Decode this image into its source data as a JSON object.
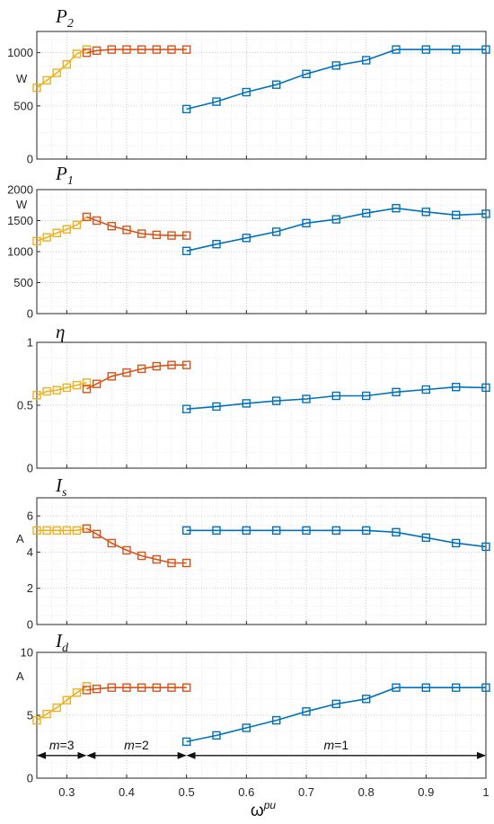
{
  "chart_data": [
    {
      "type": "line",
      "title": "P",
      "title_sub": "2",
      "ylabel": "W",
      "ylim": [
        0,
        1200
      ],
      "yticks": [
        0,
        500,
        1000
      ],
      "xlim": [
        0.25,
        1.0
      ],
      "grid": true,
      "series": [
        {
          "color": "#EDB120",
          "x": [
            0.25,
            0.2667,
            0.2833,
            0.3,
            0.3167,
            0.3333
          ],
          "y": [
            670,
            740,
            810,
            890,
            990,
            1030
          ]
        },
        {
          "color": "#D95319",
          "x": [
            0.3333,
            0.35,
            0.375,
            0.4,
            0.425,
            0.45,
            0.475,
            0.5
          ],
          "y": [
            1000,
            1020,
            1030,
            1030,
            1030,
            1030,
            1030,
            1030
          ]
        },
        {
          "color": "#0072BD",
          "x": [
            0.5,
            0.55,
            0.6,
            0.65,
            0.7,
            0.75,
            0.8,
            0.85,
            0.9,
            0.95,
            1.0
          ],
          "y": [
            470,
            540,
            630,
            700,
            800,
            880,
            930,
            1030,
            1030,
            1030,
            1030
          ]
        }
      ]
    },
    {
      "type": "line",
      "title": "P",
      "title_sub": "1",
      "ylabel": "W",
      "ylim": [
        0,
        2000
      ],
      "yticks": [
        0,
        500,
        1000,
        1500,
        2000
      ],
      "xlim": [
        0.25,
        1.0
      ],
      "grid": true,
      "series": [
        {
          "color": "#EDB120",
          "x": [
            0.25,
            0.2667,
            0.2833,
            0.3,
            0.3167,
            0.3333
          ],
          "y": [
            1170,
            1230,
            1300,
            1360,
            1430,
            1560
          ]
        },
        {
          "color": "#D95319",
          "x": [
            0.3333,
            0.35,
            0.375,
            0.4,
            0.425,
            0.45,
            0.475,
            0.5
          ],
          "y": [
            1560,
            1500,
            1410,
            1350,
            1290,
            1270,
            1260,
            1260
          ]
        },
        {
          "color": "#0072BD",
          "x": [
            0.5,
            0.55,
            0.6,
            0.65,
            0.7,
            0.75,
            0.8,
            0.85,
            0.9,
            0.95,
            1.0
          ],
          "y": [
            1010,
            1120,
            1220,
            1320,
            1460,
            1520,
            1620,
            1700,
            1640,
            1590,
            1610
          ]
        }
      ]
    },
    {
      "type": "line",
      "title": "η",
      "title_sub": "",
      "ylabel": "",
      "ylim": [
        0,
        1
      ],
      "yticks": [
        0,
        0.5,
        1
      ],
      "xlim": [
        0.25,
        1.0
      ],
      "grid": true,
      "series": [
        {
          "color": "#EDB120",
          "x": [
            0.25,
            0.2667,
            0.2833,
            0.3,
            0.3167,
            0.3333
          ],
          "y": [
            0.58,
            0.61,
            0.62,
            0.64,
            0.66,
            0.68
          ]
        },
        {
          "color": "#D95319",
          "x": [
            0.3333,
            0.35,
            0.375,
            0.4,
            0.425,
            0.45,
            0.475,
            0.5
          ],
          "y": [
            0.63,
            0.67,
            0.73,
            0.76,
            0.79,
            0.81,
            0.82,
            0.82
          ]
        },
        {
          "color": "#0072BD",
          "x": [
            0.5,
            0.55,
            0.6,
            0.65,
            0.7,
            0.75,
            0.8,
            0.85,
            0.9,
            0.95,
            1.0
          ],
          "y": [
            0.47,
            0.49,
            0.515,
            0.535,
            0.55,
            0.575,
            0.575,
            0.605,
            0.625,
            0.645,
            0.64
          ]
        }
      ]
    },
    {
      "type": "line",
      "title": "I",
      "title_sub": "s",
      "ylabel": "A",
      "ylim": [
        0,
        7
      ],
      "yticks": [
        0,
        2,
        4,
        6
      ],
      "xlim": [
        0.25,
        1.0
      ],
      "grid": true,
      "series": [
        {
          "color": "#EDB120",
          "x": [
            0.25,
            0.2667,
            0.2833,
            0.3,
            0.3167,
            0.3333
          ],
          "y": [
            5.2,
            5.2,
            5.2,
            5.2,
            5.2,
            5.3
          ]
        },
        {
          "color": "#D95319",
          "x": [
            0.3333,
            0.35,
            0.375,
            0.4,
            0.425,
            0.45,
            0.475,
            0.5
          ],
          "y": [
            5.3,
            5.0,
            4.5,
            4.1,
            3.8,
            3.6,
            3.4,
            3.4
          ]
        },
        {
          "color": "#0072BD",
          "x": [
            0.5,
            0.55,
            0.6,
            0.65,
            0.7,
            0.75,
            0.8,
            0.85,
            0.9,
            0.95,
            1.0
          ],
          "y": [
            5.2,
            5.2,
            5.2,
            5.2,
            5.2,
            5.2,
            5.2,
            5.1,
            4.8,
            4.5,
            4.3
          ]
        }
      ]
    },
    {
      "type": "line",
      "title": "I",
      "title_sub": "d",
      "ylabel": "A",
      "ylim": [
        0,
        10
      ],
      "yticks": [
        0,
        5,
        10
      ],
      "xlim": [
        0.25,
        1.0
      ],
      "xticks": [
        0.3,
        0.4,
        0.5,
        0.6,
        0.7,
        0.8,
        0.9,
        1
      ],
      "xlabel": "ω",
      "xlabel_sup": "pu",
      "grid": true,
      "series": [
        {
          "color": "#EDB120",
          "x": [
            0.25,
            0.2667,
            0.2833,
            0.3,
            0.3167,
            0.3333
          ],
          "y": [
            4.6,
            5.1,
            5.6,
            6.2,
            6.8,
            7.3
          ]
        },
        {
          "color": "#D95319",
          "x": [
            0.3333,
            0.35,
            0.375,
            0.4,
            0.425,
            0.45,
            0.475,
            0.5
          ],
          "y": [
            7.0,
            7.1,
            7.2,
            7.2,
            7.2,
            7.2,
            7.2,
            7.2
          ]
        },
        {
          "color": "#0072BD",
          "x": [
            0.5,
            0.55,
            0.6,
            0.65,
            0.7,
            0.75,
            0.8,
            0.85,
            0.9,
            0.95,
            1.0
          ],
          "y": [
            2.9,
            3.4,
            4.0,
            4.6,
            5.3,
            5.9,
            6.3,
            7.2,
            7.2,
            7.2,
            7.2
          ]
        }
      ],
      "annotations": [
        {
          "italic": "m",
          "text": "=3",
          "x_from": 0.25,
          "x_to": 0.333,
          "y": 1.8
        },
        {
          "italic": "m",
          "text": "=2",
          "x_from": 0.333,
          "x_to": 0.5,
          "y": 1.8
        },
        {
          "italic": "m",
          "text": "=1",
          "x_from": 0.5,
          "x_to": 1.0,
          "y": 1.8
        }
      ]
    }
  ]
}
